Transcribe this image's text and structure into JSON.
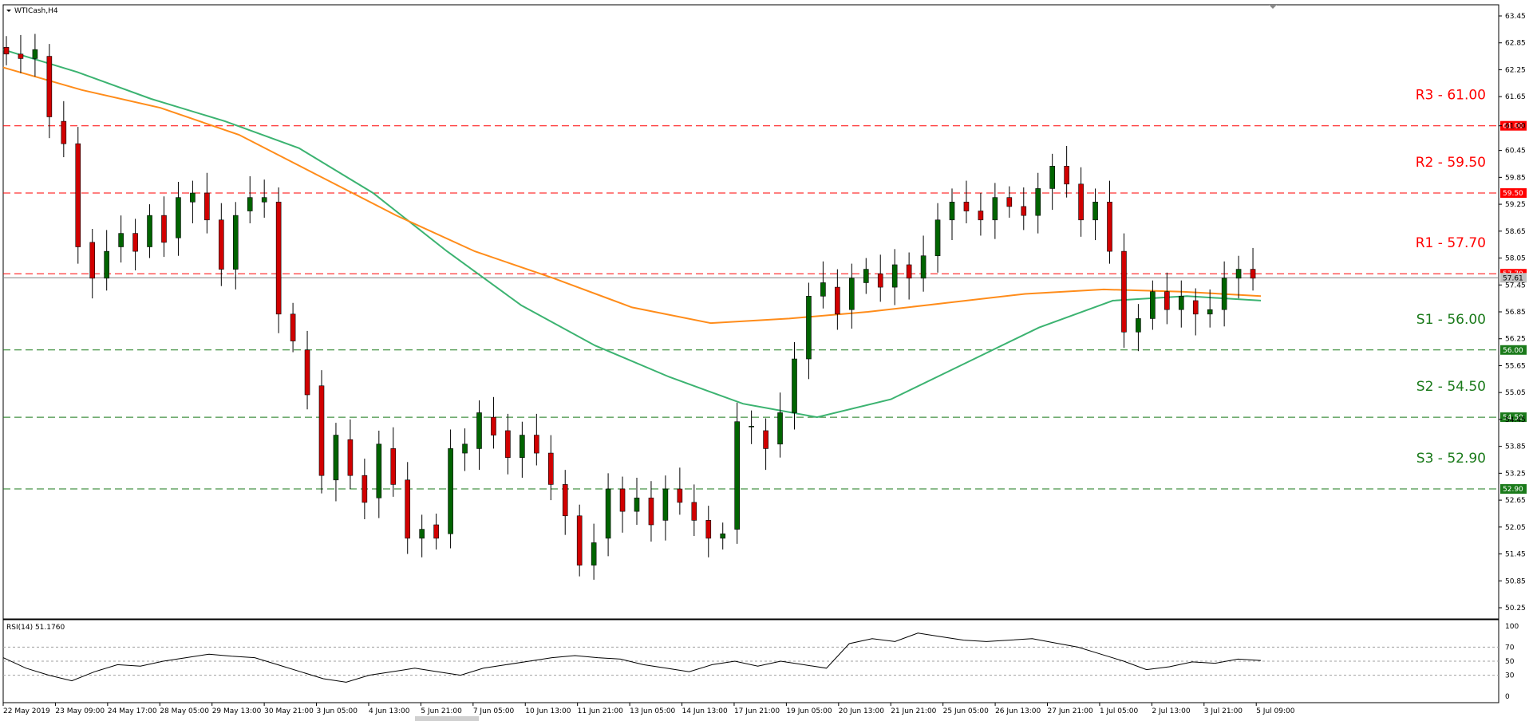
{
  "chart_data": [
    {
      "type": "candlestick",
      "title": "WTICash,H4",
      "y_axis_labels": [
        "63.45",
        "62.85",
        "62.25",
        "61.65",
        "61.00",
        "60.45",
        "59.85",
        "59.25",
        "58.65",
        "58.05",
        "57.45",
        "56.85",
        "56.25",
        "55.65",
        "55.05",
        "54.45",
        "53.85",
        "53.25",
        "52.65",
        "52.05",
        "51.45",
        "50.85",
        "50.25"
      ],
      "ylim": [
        50.25,
        63.45
      ],
      "x_axis_labels": [
        "22 May 2019",
        "23 May 09:00",
        "24 May 17:00",
        "28 May 05:00",
        "29 May 13:00",
        "30 May 21:00",
        "3 Jun 05:00",
        "4 Jun 13:00",
        "5 Jun 21:00",
        "7 Jun 05:00",
        "10 Jun 13:00",
        "11 Jun 21:00",
        "13 Jun 05:00",
        "14 Jun 13:00",
        "17 Jun 21:00",
        "19 Jun 05:00",
        "20 Jun 13:00",
        "21 Jun 21:00",
        "25 Jun 05:00",
        "26 Jun 13:00",
        "27 Jun 21:00",
        "1 Jul 05:00",
        "2 Jul 13:00",
        "3 Jul 21:00",
        "5 Jul 09:00"
      ],
      "levels": [
        {
          "name": "R3 - 61.00",
          "value": 61.0,
          "tag": "61.00",
          "color": "#ff0000"
        },
        {
          "name": "R2 - 59.50",
          "value": 59.5,
          "tag": "59.50",
          "color": "#ff0000"
        },
        {
          "name": "R1  - 57.70",
          "value": 57.7,
          "tag": "57.70",
          "color": "#ff0000"
        },
        {
          "name": "S1 - 56.00",
          "value": 56.0,
          "tag": "56.00",
          "color": "#1a7a1a"
        },
        {
          "name": "S2 - 54.50",
          "value": 54.5,
          "tag": "54.50",
          "color": "#1a7a1a"
        },
        {
          "name": "S3 - 52.90",
          "value": 52.9,
          "tag": "52.90",
          "color": "#1a7a1a"
        }
      ],
      "current_price": "57.61",
      "moving_averages": {
        "green_ma": [
          62.7,
          62.2,
          61.6,
          61.1,
          60.5,
          59.5,
          58.2,
          57.0,
          56.1,
          55.4,
          54.8,
          54.5,
          54.9,
          55.7,
          56.5,
          57.1,
          57.2,
          57.1
        ],
        "orange_ma": [
          62.3,
          61.8,
          61.4,
          60.8,
          59.9,
          59.0,
          58.2,
          57.6,
          56.95,
          56.6,
          56.7,
          56.85,
          57.05,
          57.25,
          57.35,
          57.3,
          57.2
        ]
      },
      "candles": [
        [
          62.75,
          62.6
        ],
        [
          62.6,
          62.5
        ],
        [
          62.5,
          62.7
        ],
        [
          62.55,
          61.2
        ],
        [
          61.1,
          60.6
        ],
        [
          60.6,
          58.3
        ],
        [
          58.4,
          57.6
        ],
        [
          57.6,
          58.2
        ],
        [
          58.3,
          58.6
        ],
        [
          58.6,
          58.2
        ],
        [
          58.3,
          59.0
        ],
        [
          59.0,
          58.4
        ],
        [
          58.5,
          59.4
        ],
        [
          59.3,
          59.5
        ],
        [
          59.5,
          58.9
        ],
        [
          58.9,
          57.8
        ],
        [
          57.8,
          59.0
        ],
        [
          59.1,
          59.4
        ],
        [
          59.3,
          59.4
        ],
        [
          59.3,
          56.8
        ],
        [
          56.8,
          56.2
        ],
        [
          56.0,
          55.0
        ],
        [
          55.2,
          53.2
        ],
        [
          53.1,
          54.1
        ],
        [
          54.0,
          53.2
        ],
        [
          53.2,
          52.6
        ],
        [
          52.7,
          53.9
        ],
        [
          53.8,
          53.0
        ],
        [
          53.1,
          51.8
        ],
        [
          51.8,
          52.0
        ],
        [
          52.1,
          51.8
        ],
        [
          51.9,
          53.8
        ],
        [
          53.7,
          53.9
        ],
        [
          53.8,
          54.6
        ],
        [
          54.5,
          54.1
        ],
        [
          54.2,
          53.6
        ],
        [
          53.6,
          54.1
        ],
        [
          54.1,
          53.7
        ],
        [
          53.7,
          53.0
        ],
        [
          53.0,
          52.3
        ],
        [
          52.3,
          51.2
        ],
        [
          51.2,
          51.7
        ],
        [
          51.8,
          52.9
        ],
        [
          52.9,
          52.4
        ],
        [
          52.4,
          52.7
        ],
        [
          52.7,
          52.1
        ],
        [
          52.2,
          52.9
        ],
        [
          52.9,
          52.6
        ],
        [
          52.6,
          52.2
        ],
        [
          52.2,
          51.8
        ],
        [
          51.8,
          51.9
        ],
        [
          52.0,
          54.4
        ],
        [
          54.3,
          54.3
        ],
        [
          54.2,
          53.8
        ],
        [
          53.9,
          54.6
        ],
        [
          54.6,
          55.8
        ],
        [
          55.8,
          57.2
        ],
        [
          57.2,
          57.5
        ],
        [
          57.4,
          56.8
        ],
        [
          56.9,
          57.6
        ],
        [
          57.5,
          57.8
        ],
        [
          57.7,
          57.4
        ],
        [
          57.4,
          57.9
        ],
        [
          57.9,
          57.6
        ],
        [
          57.6,
          58.1
        ],
        [
          58.1,
          58.9
        ],
        [
          58.9,
          59.3
        ],
        [
          59.3,
          59.1
        ],
        [
          59.1,
          58.9
        ],
        [
          58.9,
          59.4
        ],
        [
          59.4,
          59.2
        ],
        [
          59.2,
          59.0
        ],
        [
          59.0,
          59.6
        ],
        [
          59.6,
          60.1
        ],
        [
          60.1,
          59.7
        ],
        [
          59.7,
          58.9
        ],
        [
          58.9,
          59.3
        ],
        [
          59.3,
          58.2
        ],
        [
          58.2,
          56.4
        ],
        [
          56.4,
          56.7
        ],
        [
          56.7,
          57.3
        ],
        [
          57.3,
          56.9
        ],
        [
          56.9,
          57.2
        ],
        [
          57.1,
          56.8
        ],
        [
          56.8,
          56.9
        ],
        [
          56.9,
          57.6
        ],
        [
          57.6,
          57.8
        ],
        [
          57.8,
          57.6
        ]
      ]
    },
    {
      "type": "line",
      "title": "RSI(14) 51.1760",
      "y_axis_labels": [
        "100",
        "70",
        "50",
        "30",
        "0"
      ],
      "levels": [
        70,
        50,
        30
      ],
      "ylim": [
        0,
        100
      ],
      "values": [
        55,
        40,
        30,
        22,
        35,
        45,
        43,
        50,
        55,
        60,
        57,
        55,
        45,
        35,
        25,
        20,
        30,
        35,
        40,
        35,
        30,
        40,
        45,
        50,
        55,
        58,
        55,
        53,
        45,
        40,
        35,
        45,
        50,
        43,
        50,
        45,
        40,
        75,
        82,
        78,
        90,
        85,
        80,
        78,
        80,
        82,
        76,
        70,
        60,
        50,
        38,
        42,
        49,
        47,
        53,
        51
      ]
    }
  ]
}
